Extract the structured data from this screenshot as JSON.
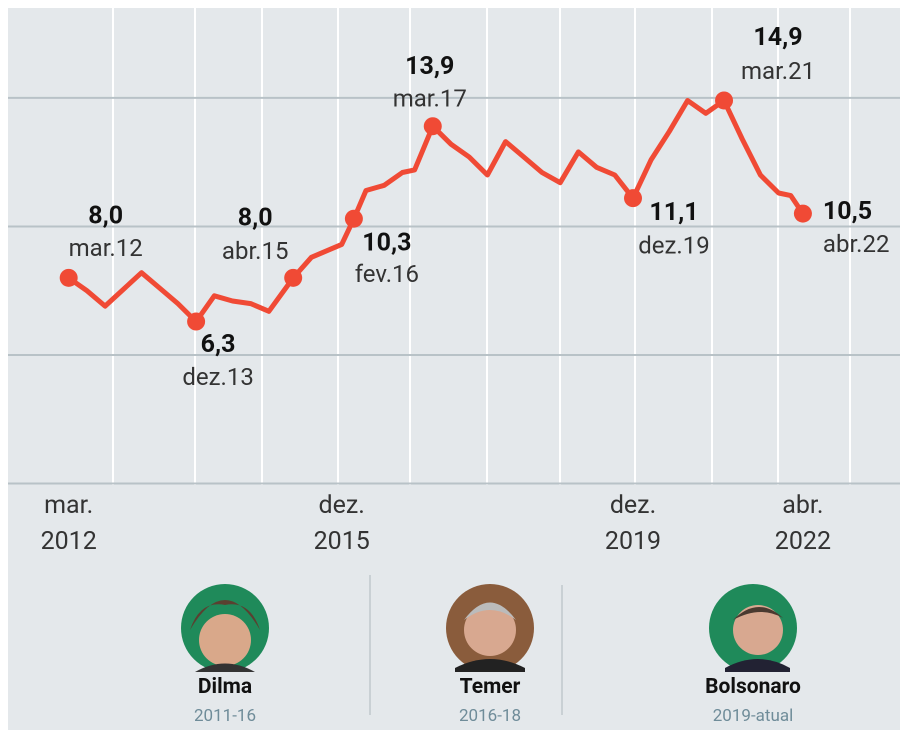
{
  "chart_data": {
    "type": "line",
    "color": "#f04a35",
    "x": [
      "2012-03",
      "2012-06",
      "2012-09",
      "2013-03",
      "2013-06",
      "2013-09",
      "2013-12",
      "2014-03",
      "2014-06",
      "2014-09",
      "2014-12",
      "2015-04",
      "2015-07",
      "2015-10",
      "2015-12",
      "2016-02",
      "2016-04",
      "2016-07",
      "2016-10",
      "2016-12",
      "2017-03",
      "2017-06",
      "2017-09",
      "2017-12",
      "2018-03",
      "2018-06",
      "2018-09",
      "2018-12",
      "2019-03",
      "2019-06",
      "2019-09",
      "2019-12",
      "2020-03",
      "2020-06",
      "2020-09",
      "2020-12",
      "2021-03",
      "2021-06",
      "2021-09",
      "2021-12",
      "2022-02",
      "2022-04"
    ],
    "values": [
      8.0,
      7.5,
      6.9,
      8.2,
      7.6,
      7.0,
      6.3,
      7.3,
      7.1,
      7.0,
      6.7,
      8.0,
      8.8,
      9.1,
      9.3,
      10.3,
      11.4,
      11.6,
      12.1,
      12.2,
      13.9,
      13.2,
      12.7,
      12.0,
      13.3,
      12.7,
      12.1,
      11.7,
      12.9,
      12.3,
      12.0,
      11.1,
      12.6,
      13.7,
      14.9,
      14.4,
      14.9,
      13.4,
      12.0,
      11.3,
      11.2,
      10.5
    ],
    "value_labels": [
      "8,0",
      null,
      null,
      null,
      null,
      null,
      "6,3",
      null,
      null,
      null,
      null,
      "8,0",
      null,
      null,
      null,
      "10,3",
      null,
      null,
      null,
      null,
      "13,9",
      null,
      null,
      null,
      null,
      null,
      null,
      null,
      null,
      null,
      null,
      "11,1",
      null,
      null,
      null,
      null,
      "14,9",
      null,
      null,
      null,
      null,
      "10,5"
    ],
    "point_labels": [
      "mar.12",
      null,
      null,
      null,
      null,
      null,
      "dez.13",
      null,
      null,
      null,
      null,
      "abr.15",
      null,
      null,
      null,
      "fev.16",
      null,
      null,
      null,
      null,
      "mar.17",
      null,
      null,
      null,
      null,
      null,
      null,
      null,
      null,
      null,
      null,
      "dez.19",
      null,
      null,
      null,
      null,
      "mar.21",
      null,
      null,
      null,
      null,
      "abr.22"
    ],
    "xlim": [
      "2011-05",
      "2023-08"
    ],
    "xticks": [
      {
        "value": "2012-03",
        "label": "mar.\n2012"
      },
      {
        "value": "2015-12",
        "label": "dez.\n2015"
      },
      {
        "value": "2019-12",
        "label": "dez.\n2019"
      },
      {
        "value": "2022-04",
        "label": "abr.\n2022"
      }
    ],
    "ylim": [
      0,
      18.42
    ],
    "yticks": [
      0,
      5,
      10,
      15
    ],
    "grid": true
  },
  "presidents": [
    {
      "name": "Dilma",
      "term": "2011-16"
    },
    {
      "name": "Temer",
      "term": "2016-18"
    },
    {
      "name": "Bolsonaro",
      "term": "2019-atual"
    }
  ]
}
